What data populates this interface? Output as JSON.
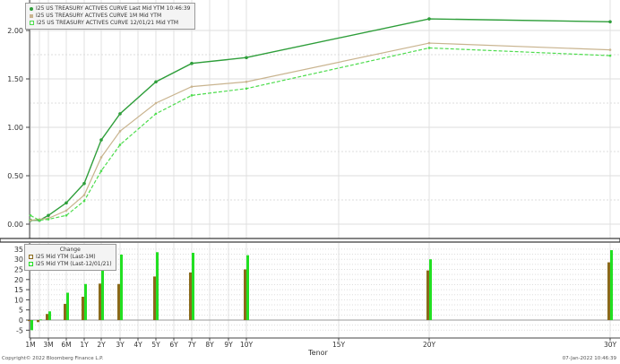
{
  "chart_data": [
    {
      "type": "line",
      "xlabel": "",
      "ylabel": "",
      "ylim": [
        -0.05,
        2.2
      ],
      "yticks": [
        "0.00",
        "0.50",
        "1.00",
        "1.50",
        "2.00"
      ],
      "grid": true,
      "legend_position": "top-left",
      "x": [
        "1M",
        "2M",
        "3M",
        "6M",
        "1Y",
        "2Y",
        "3Y",
        "5Y",
        "7Y",
        "10Y",
        "20Y",
        "30Y"
      ],
      "series": [
        {
          "name": "I25 US TREASURY ACTIVES CURVE Last Mid YTM 10:46:39",
          "color": "#2e9e3a",
          "style": "solid",
          "values": [
            0.04,
            0.04,
            0.09,
            0.22,
            0.42,
            0.87,
            1.14,
            1.47,
            1.66,
            1.72,
            2.12,
            2.09
          ]
        },
        {
          "name": "I25 US TREASURY ACTIVES CURVE 1M Mid YTM",
          "color": "#c9b48f",
          "style": "solid",
          "values": [
            0.04,
            0.05,
            0.06,
            0.14,
            0.3,
            0.69,
            0.96,
            1.25,
            1.42,
            1.47,
            1.87,
            1.8
          ]
        },
        {
          "name": "I25 US TREASURY ACTIVES CURVE 12/01/21 Mid YTM",
          "color": "#4ddc4d",
          "style": "dashed",
          "values": [
            0.09,
            0.04,
            0.05,
            0.09,
            0.24,
            0.55,
            0.82,
            1.14,
            1.33,
            1.4,
            1.82,
            1.74
          ]
        }
      ]
    },
    {
      "type": "bar",
      "title": "Change",
      "xlabel": "Tenor",
      "ylim": [
        -8,
        37
      ],
      "yticks": [
        "-5",
        "0",
        "5",
        "10",
        "15",
        "20",
        "25",
        "30",
        "35"
      ],
      "grid": true,
      "legend_position": "top-left",
      "x_tick_labels": [
        "1M",
        "3M",
        "6M",
        "1Y",
        "2Y",
        "3Y",
        "4Y",
        "5Y",
        "6Y",
        "7Y",
        "8Y",
        "9Y",
        "10Y",
        "15Y",
        "20Y",
        "30Y"
      ],
      "x": [
        "1M",
        "2M",
        "3M",
        "6M",
        "1Y",
        "2Y",
        "3Y",
        "5Y",
        "7Y",
        "10Y",
        "20Y",
        "30Y"
      ],
      "series": [
        {
          "name": "I25 Mid YTM (Last-1M)",
          "color": "#8a6a1a",
          "values": [
            -0.5,
            -1,
            3,
            8,
            11.5,
            18,
            17.8,
            21.5,
            23.5,
            25,
            24.5,
            28.5
          ]
        },
        {
          "name": "I25 Mid YTM (Last-12/01/21)",
          "color": "#22e022",
          "values": [
            -5,
            0.3,
            4.3,
            13.5,
            17.8,
            32,
            32.3,
            33.5,
            33.2,
            32,
            30,
            34.5
          ]
        }
      ]
    }
  ],
  "footer": {
    "copyright": "Copyright© 2022 Bloomberg Finance L.P.",
    "timestamp": "07-Jan-2022 10:46:39"
  }
}
